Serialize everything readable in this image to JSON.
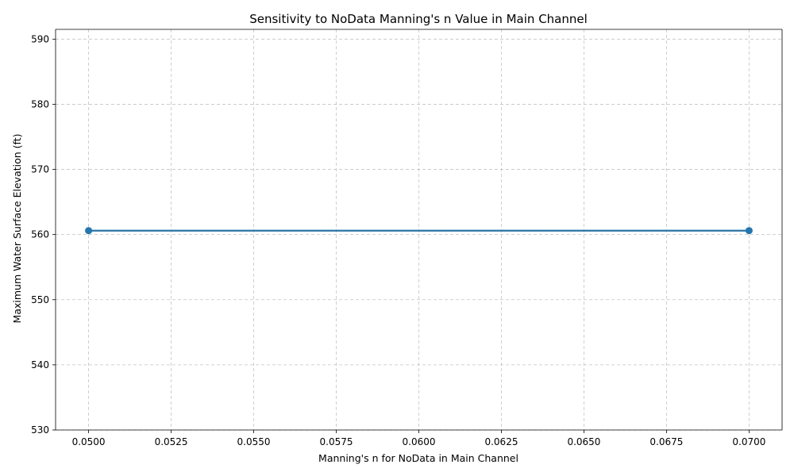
{
  "chart_data": {
    "type": "line",
    "title": "Sensitivity to NoData Manning's n Value in Main Channel",
    "xlabel": "Manning's n for NoData in Main Channel",
    "ylabel": "Maximum Water Surface Elevation (ft)",
    "xlim": [
      0.049,
      0.071
    ],
    "ylim": [
      530,
      591.5
    ],
    "x_ticks": [
      "0.0500",
      "0.0525",
      "0.0550",
      "0.0575",
      "0.0600",
      "0.0625",
      "0.0650",
      "0.0675",
      "0.0700"
    ],
    "y_ticks": [
      "530",
      "540",
      "550",
      "560",
      "570",
      "580",
      "590"
    ],
    "grid": true,
    "series": [
      {
        "x": [
          0.05,
          0.07
        ],
        "y": [
          560.6,
          560.6
        ],
        "color": "#1f77b4",
        "marker": "circle"
      }
    ]
  }
}
